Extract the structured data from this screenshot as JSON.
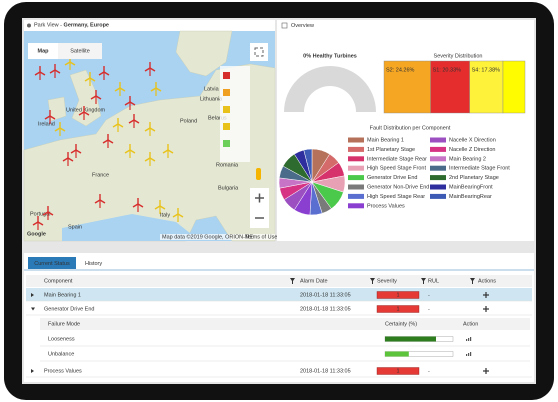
{
  "map": {
    "header_prefix": "Park View - ",
    "header_location": "Germany, Europe",
    "buttons": [
      "Map",
      "Satellite"
    ],
    "labels": [
      "Lithuania",
      "Latvia",
      "Belarus",
      "Ireland",
      "United Kingdom",
      "Poland",
      "France",
      "Romania",
      "Bulgaria",
      "Portugal",
      "Spain",
      "Italy"
    ],
    "attribution": "Map data ©2019 Google, ORION-ME",
    "terms": "Terms of Use",
    "logo": "Google"
  },
  "overview": {
    "title": "Overview"
  },
  "chart_data": [
    {
      "type": "gauge",
      "title": "0% Healthy Turbines",
      "value": 0,
      "color": "#d9d9d9"
    },
    {
      "type": "treemap",
      "title": "Severity Distribution",
      "values": [
        24.26,
        20.33,
        17.38
      ],
      "value_labels": [
        "S2: 24.26%",
        "S1: 20.33%",
        "S4: 17.38%"
      ],
      "colors": [
        "#f5a623",
        "#e52d2d",
        "#fff23a"
      ]
    },
    {
      "type": "pie",
      "title": "Fault Distribution per Component",
      "categories": [
        "Main Bearing 1",
        "1st Planetary Stage",
        "Intermediate Stage Rear",
        "High Speed Stage Front",
        "Generator Drive End",
        "Generator Non-Drive End",
        "High Speed Stage Rear",
        "Process Values",
        "Nacelle X Direction",
        "Nacelle Z Direction",
        "Main Bearing 2",
        "Intermediate Stage Front",
        "2nd Planetary Stage",
        "MainBearingFront",
        "MainBearingRear"
      ],
      "values": [
        9,
        6,
        7,
        8,
        10,
        5,
        6,
        8,
        7,
        6,
        5,
        6,
        8,
        5,
        4
      ],
      "colors": [
        "#b5715a",
        "#d46a6a",
        "#d6336c",
        "#e8a0b4",
        "#4bc94b",
        "#7a7a7a",
        "#5b6fd1",
        "#8b3fd1",
        "#9b4fc0",
        "#d63384",
        "#c774c7",
        "#4a6b8a",
        "#2e6b2e",
        "#2e2e9e",
        "#3d5bb5"
      ]
    }
  ],
  "table": {
    "tabs": [
      "Current Status",
      "History"
    ],
    "columns": [
      "Component",
      "Alarm Date",
      "Severity",
      "RUL",
      "Actions"
    ],
    "rows": [
      [
        "Main Bearing 1",
        "2018-01-18 11:33:05",
        "1",
        "-"
      ],
      [
        "Generator Drive End",
        "2018-01-18 11:33:05",
        "1",
        "-"
      ],
      [
        "Process Values",
        "2018-01-18 11:33:05",
        "1",
        "-"
      ]
    ],
    "subtable": {
      "columns": [
        "Failure Mode",
        "Certainty (%)",
        "Action"
      ],
      "rows": [
        {
          "mode": "Looseness",
          "certainty": 75,
          "color": "#2e7d1e"
        },
        {
          "mode": "Unbalance",
          "certainty": 35,
          "color": "#5cc43a"
        }
      ]
    }
  }
}
